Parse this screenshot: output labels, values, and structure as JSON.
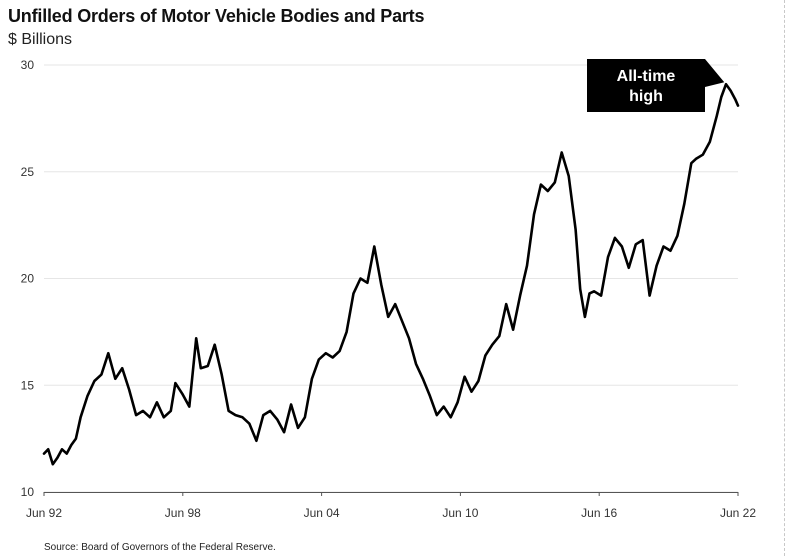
{
  "chart_data": {
    "type": "line",
    "title": "Unfilled Orders of Motor Vehicle Bodies and Parts",
    "subtitle": "$ Billions",
    "ylim": [
      10,
      30
    ],
    "yticks": [
      10,
      15,
      20,
      25,
      30
    ],
    "xlim": [
      1992.42,
      2022.42
    ],
    "xticks": [
      {
        "label": "Jun 92",
        "value": 1992.42
      },
      {
        "label": "Jun 98",
        "value": 1998.42
      },
      {
        "label": "Jun 04",
        "value": 2004.42
      },
      {
        "label": "Jun 10",
        "value": 2010.42
      },
      {
        "label": "Jun 16",
        "value": 2016.42
      },
      {
        "label": "Jun 22",
        "value": 2022.42
      }
    ],
    "grid": "horizontal",
    "color": "#000000",
    "annotation": {
      "text": [
        "All-time",
        "high"
      ],
      "x": 2022.0,
      "y": 29.1
    },
    "series": [
      {
        "x": [
          1992.42,
          1992.6,
          1992.8,
          1993.0,
          1993.2,
          1993.4,
          1993.6,
          1993.8,
          1994.0,
          1994.3,
          1994.6,
          1994.9,
          1995.2,
          1995.5,
          1995.8,
          1996.1,
          1996.4,
          1996.7,
          1997.0,
          1997.3,
          1997.6,
          1997.9,
          1998.1,
          1998.4,
          1998.7,
          1999.0,
          1999.2,
          1999.5,
          1999.8,
          2000.1,
          2000.4,
          2000.7,
          2001.0,
          2001.3,
          2001.6,
          2001.9,
          2002.2,
          2002.5,
          2002.8,
          2003.1,
          2003.4,
          2003.7,
          2004.0,
          2004.3,
          2004.6,
          2004.9,
          2005.2,
          2005.5,
          2005.8,
          2006.1,
          2006.4,
          2006.7,
          2007.0,
          2007.3,
          2007.6,
          2007.9,
          2008.2,
          2008.5,
          2008.8,
          2009.1,
          2009.4,
          2009.7,
          2010.0,
          2010.3,
          2010.6,
          2010.9,
          2011.2,
          2011.5,
          2011.8,
          2012.1,
          2012.4,
          2012.7,
          2013.0,
          2013.3,
          2013.6,
          2013.9,
          2014.2,
          2014.5,
          2014.8,
          2015.1,
          2015.4,
          2015.6,
          2015.8,
          2016.0,
          2016.2,
          2016.5,
          2016.8,
          2017.1,
          2017.4,
          2017.7,
          2018.0,
          2018.3,
          2018.6,
          2018.9,
          2019.2,
          2019.5,
          2019.8,
          2020.1,
          2020.4,
          2020.6,
          2020.9,
          2021.2,
          2021.5,
          2021.7,
          2021.9,
          2022.1,
          2022.3,
          2022.42
        ],
        "y": [
          11.8,
          12.0,
          11.3,
          11.6,
          12.0,
          11.8,
          12.2,
          12.5,
          13.5,
          14.5,
          15.2,
          15.5,
          16.5,
          15.3,
          15.8,
          14.8,
          13.6,
          13.8,
          13.5,
          14.2,
          13.5,
          13.8,
          15.1,
          14.6,
          14.0,
          17.2,
          15.8,
          15.9,
          16.9,
          15.5,
          13.8,
          13.6,
          13.5,
          13.2,
          12.4,
          13.6,
          13.8,
          13.4,
          12.8,
          14.1,
          13.0,
          13.5,
          15.3,
          16.2,
          16.5,
          16.3,
          16.6,
          17.5,
          19.3,
          20.0,
          19.8,
          21.5,
          19.7,
          18.2,
          18.8,
          18.0,
          17.2,
          16.0,
          15.3,
          14.5,
          13.6,
          14.0,
          13.5,
          14.2,
          15.4,
          14.7,
          15.2,
          16.4,
          16.9,
          17.3,
          18.8,
          17.6,
          19.2,
          20.6,
          23.0,
          24.4,
          24.1,
          24.5,
          25.9,
          24.8,
          22.3,
          19.5,
          18.2,
          19.3,
          19.4,
          19.2,
          21.0,
          21.9,
          21.5,
          20.5,
          21.6,
          21.8,
          19.2,
          20.6,
          21.5,
          21.3,
          22.0,
          23.5,
          25.4,
          25.6,
          25.8,
          26.4,
          27.6,
          28.5,
          29.1,
          28.8,
          28.4,
          28.1
        ]
      }
    ],
    "source": "Source: Board of Governors of the Federal Reserve."
  }
}
